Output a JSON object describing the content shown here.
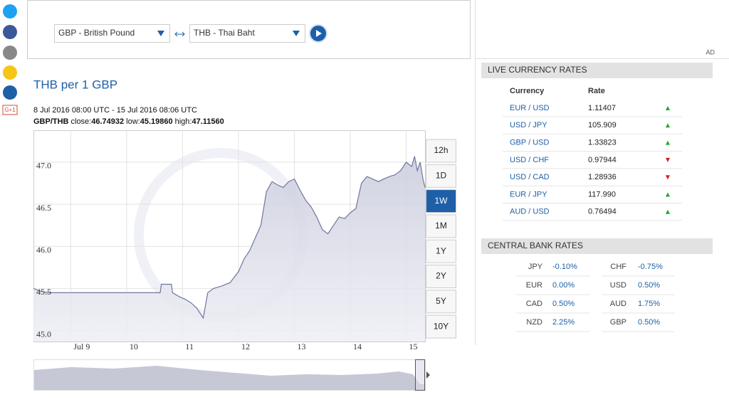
{
  "social": {
    "gplus": "G+1"
  },
  "selector": {
    "from": "GBP - British Pound",
    "to": "THB - Thai Baht"
  },
  "chart_data": {
    "type": "area",
    "title": "THB per 1 GBP",
    "subtitle": "8 Jul 2016 08:00 UTC - 15 Jul 2016 08:06 UTC",
    "stats": {
      "pair": "GBP/THB",
      "close_label": "close:",
      "close": "46.74932",
      "low_label": "low:",
      "low": "45.19860",
      "high_label": "high:",
      "high": "47.11560"
    },
    "x": [
      8.333,
      8.45,
      8.6,
      8.8,
      9.0,
      9.5,
      10.0,
      10.5,
      10.6,
      10.62,
      10.8,
      10.82,
      10.95,
      11.05,
      11.15,
      11.25,
      11.37,
      11.45,
      11.55,
      11.7,
      11.85,
      12.0,
      12.1,
      12.2,
      12.3,
      12.4,
      12.5,
      12.6,
      12.7,
      12.8,
      12.9,
      13.0,
      13.1,
      13.2,
      13.3,
      13.4,
      13.5,
      13.6,
      13.7,
      13.8,
      13.9,
      14.0,
      14.1,
      14.2,
      14.3,
      14.4,
      14.5,
      14.6,
      14.7,
      14.8,
      14.9,
      15.0,
      15.1,
      15.15,
      15.2,
      15.25,
      15.3,
      15.337
    ],
    "values": [
      45.55,
      45.52,
      45.5,
      45.5,
      45.5,
      45.5,
      45.5,
      45.5,
      45.5,
      45.6,
      45.6,
      45.5,
      45.45,
      45.42,
      45.38,
      45.32,
      45.2,
      45.5,
      45.55,
      45.58,
      45.62,
      45.75,
      45.9,
      46.0,
      46.15,
      46.3,
      46.7,
      46.82,
      46.78,
      46.75,
      46.82,
      46.85,
      46.72,
      46.6,
      46.52,
      46.4,
      46.25,
      46.2,
      46.3,
      46.4,
      46.38,
      46.45,
      46.5,
      46.8,
      46.88,
      46.85,
      46.82,
      46.85,
      46.88,
      46.9,
      46.95,
      47.05,
      47.0,
      47.12,
      46.95,
      47.05,
      46.85,
      46.75
    ],
    "color": "#6f759c",
    "xlim": [
      8.333,
      15.337
    ],
    "xticks": [
      {
        "value": 9,
        "label": "Jul 9"
      },
      10,
      11,
      12,
      13,
      14,
      15
    ],
    "ylim": [
      44.92,
      47.43
    ],
    "yticks": [
      {
        "value": 45,
        "label": "45.0"
      },
      45.5,
      {
        "value": 46,
        "label": "46.0"
      },
      46.5,
      {
        "value": 47,
        "label": "47.0"
      }
    ],
    "grid": true,
    "ranges": [
      {
        "label": "12h"
      },
      {
        "label": "1D"
      },
      {
        "label": "1W",
        "active": true
      },
      {
        "label": "1M"
      },
      {
        "label": "1Y"
      },
      {
        "label": "2Y"
      },
      {
        "label": "5Y"
      },
      {
        "label": "10Y"
      }
    ]
  },
  "ad": "AD",
  "live_rates": {
    "title": "LIVE CURRENCY RATES",
    "headers": [
      "Currency",
      "Rate"
    ],
    "rows": [
      {
        "pair": "EUR / USD",
        "rate": "1.11407",
        "trend": "up"
      },
      {
        "pair": "USD / JPY",
        "rate": "105.909",
        "trend": "up"
      },
      {
        "pair": "GBP / USD",
        "rate": "1.33823",
        "trend": "up"
      },
      {
        "pair": "USD / CHF",
        "rate": "0.97944",
        "trend": "down"
      },
      {
        "pair": "USD / CAD",
        "rate": "1.28936",
        "trend": "down"
      },
      {
        "pair": "EUR / JPY",
        "rate": "117.990",
        "trend": "up"
      },
      {
        "pair": "AUD / USD",
        "rate": "0.76494",
        "trend": "up"
      }
    ]
  },
  "central_bank": {
    "title": "CENTRAL BANK RATES",
    "rows": [
      [
        [
          "JPY",
          "-0.10%"
        ],
        [
          "CHF",
          "-0.75%"
        ]
      ],
      [
        [
          "EUR",
          "0.00%"
        ],
        [
          "USD",
          "0.50%"
        ]
      ],
      [
        [
          "CAD",
          "0.50%"
        ],
        [
          "AUD",
          "1.75%"
        ]
      ],
      [
        [
          "NZD",
          "2.25%"
        ],
        [
          "GBP",
          "0.50%"
        ]
      ]
    ]
  }
}
